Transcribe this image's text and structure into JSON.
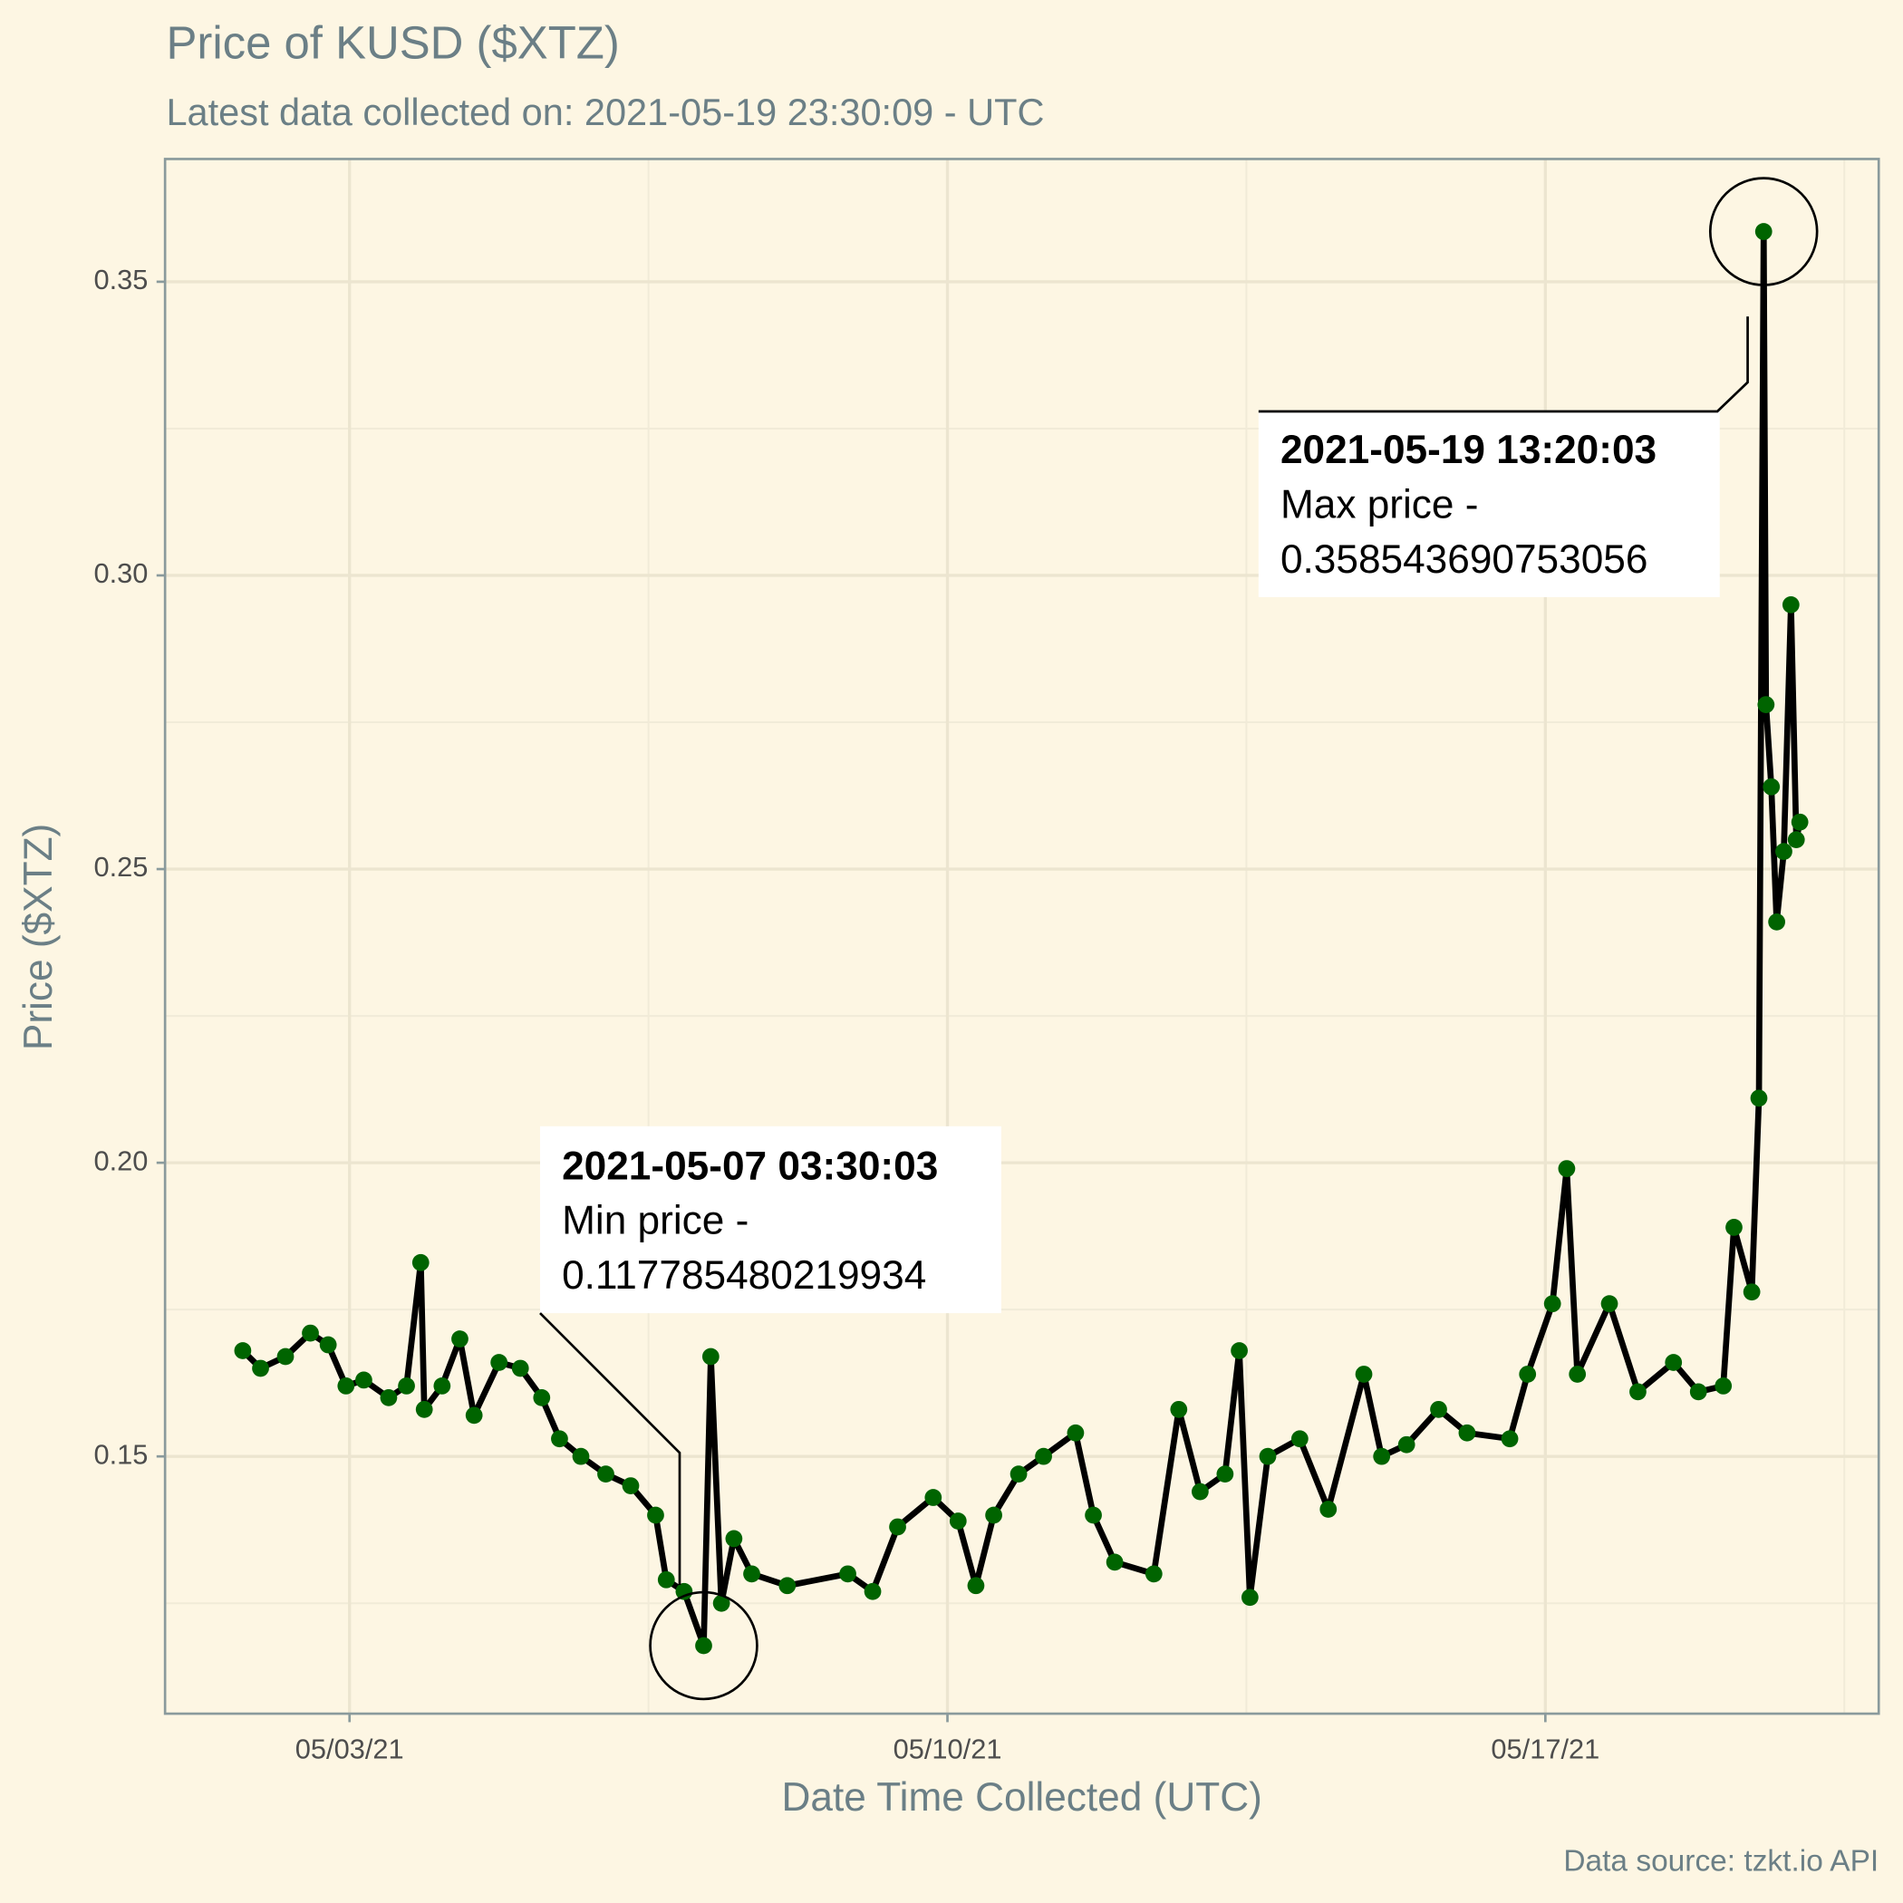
{
  "chart_data": {
    "type": "line",
    "title": "Price of KUSD ($XTZ)",
    "subtitle": "Latest data collected on: 2021-05-19 23:30:09  - UTC",
    "x_label": "Date Time Collected (UTC)",
    "y_label": "Price ($XTZ)",
    "caption": "Data source: tzkt.io API",
    "line_color": "#000000",
    "color": "#006400",
    "grid": true,
    "xlim": [
      "2021-04-30 20:10",
      "2021-05-20 21:40"
    ],
    "xticks": [
      {
        "value": "2021-05-03",
        "label": "05/03/21"
      },
      {
        "value": "2021-05-10",
        "label": "05/10/21"
      },
      {
        "value": "2021-05-17",
        "label": "05/17/21"
      }
    ],
    "ylim": [
      0.1062,
      0.3709
    ],
    "yticks": [
      {
        "value": 0.15,
        "label": "0.15"
      },
      {
        "value": 0.2,
        "label": "0.20"
      },
      {
        "value": 0.25,
        "label": "0.25"
      },
      {
        "value": 0.3,
        "label": "0.30"
      },
      {
        "value": 0.35,
        "label": "0.35"
      }
    ],
    "x": [
      "2021-05-01 18:00",
      "2021-05-01 23:00",
      "2021-05-02 06:00",
      "2021-05-02 13:00",
      "2021-05-02 18:00",
      "2021-05-02 23:00",
      "2021-05-03 04:00",
      "2021-05-03 11:00",
      "2021-05-03 16:00",
      "2021-05-03 20:00",
      "2021-05-03 21:00",
      "2021-05-04 02:00",
      "2021-05-04 07:00",
      "2021-05-04 11:00",
      "2021-05-04 18:00",
      "2021-05-05 00:00",
      "2021-05-05 06:00",
      "2021-05-05 11:00",
      "2021-05-05 17:00",
      "2021-05-06 00:00",
      "2021-05-06 07:00",
      "2021-05-06 14:00",
      "2021-05-06 17:00",
      "2021-05-06 22:00",
      "2021-05-07 03:30:03",
      "2021-05-07 05:30",
      "2021-05-07 08:30",
      "2021-05-07 12:00",
      "2021-05-07 17:00",
      "2021-05-08 03:00",
      "2021-05-08 20:00",
      "2021-05-09 03:00",
      "2021-05-09 10:00",
      "2021-05-09 20:00",
      "2021-05-10 03:00",
      "2021-05-10 08:00",
      "2021-05-10 13:00",
      "2021-05-10 20:00",
      "2021-05-11 03:00",
      "2021-05-11 12:00",
      "2021-05-11 17:00",
      "2021-05-11 23:00",
      "2021-05-12 10:00",
      "2021-05-12 17:00",
      "2021-05-12 23:00",
      "2021-05-13 06:00",
      "2021-05-13 10:00",
      "2021-05-13 13:00",
      "2021-05-13 18:00",
      "2021-05-14 03:00",
      "2021-05-14 11:00",
      "2021-05-14 21:00",
      "2021-05-15 02:00",
      "2021-05-15 09:00",
      "2021-05-15 18:00",
      "2021-05-16 02:00",
      "2021-05-16 14:00",
      "2021-05-16 19:00",
      "2021-05-17 02:00",
      "2021-05-17 06:00",
      "2021-05-17 09:00",
      "2021-05-17 18:00",
      "2021-05-18 02:00",
      "2021-05-18 12:00",
      "2021-05-18 19:00",
      "2021-05-19 02:00",
      "2021-05-19 05:00",
      "2021-05-19 10:00",
      "2021-05-19 12:00",
      "2021-05-19 13:20:03",
      "2021-05-19 14:00",
      "2021-05-19 15:30",
      "2021-05-19 17:00",
      "2021-05-19 19:00",
      "2021-05-19 21:00",
      "2021-05-19 22:30",
      "2021-05-19 23:30"
    ],
    "values": [
      0.168,
      0.165,
      0.167,
      0.171,
      0.169,
      0.162,
      0.163,
      0.16,
      0.162,
      0.183,
      0.158,
      0.162,
      0.17,
      0.157,
      0.166,
      0.165,
      0.16,
      0.153,
      0.15,
      0.147,
      0.145,
      0.14,
      0.129,
      0.127,
      0.117785480219934,
      0.167,
      0.125,
      0.136,
      0.13,
      0.128,
      0.13,
      0.127,
      0.138,
      0.143,
      0.139,
      0.128,
      0.14,
      0.147,
      0.15,
      0.154,
      0.14,
      0.132,
      0.13,
      0.158,
      0.144,
      0.147,
      0.168,
      0.126,
      0.15,
      0.153,
      0.141,
      0.164,
      0.15,
      0.152,
      0.158,
      0.154,
      0.153,
      0.164,
      0.176,
      0.199,
      0.164,
      0.176,
      0.161,
      0.166,
      0.161,
      0.162,
      0.189,
      0.178,
      0.211,
      0.358543690753056,
      0.278,
      0.264,
      0.241,
      0.253,
      0.295,
      0.255,
      0.258
    ],
    "annotations": [
      {
        "lines": [
          "2021-05-07 03:30:03",
          "Min price -",
          "0.117785480219934"
        ]
      },
      {
        "lines": [
          "2021-05-19 13:20:03",
          "Max price -",
          "0.358543690753056"
        ]
      }
    ]
  }
}
